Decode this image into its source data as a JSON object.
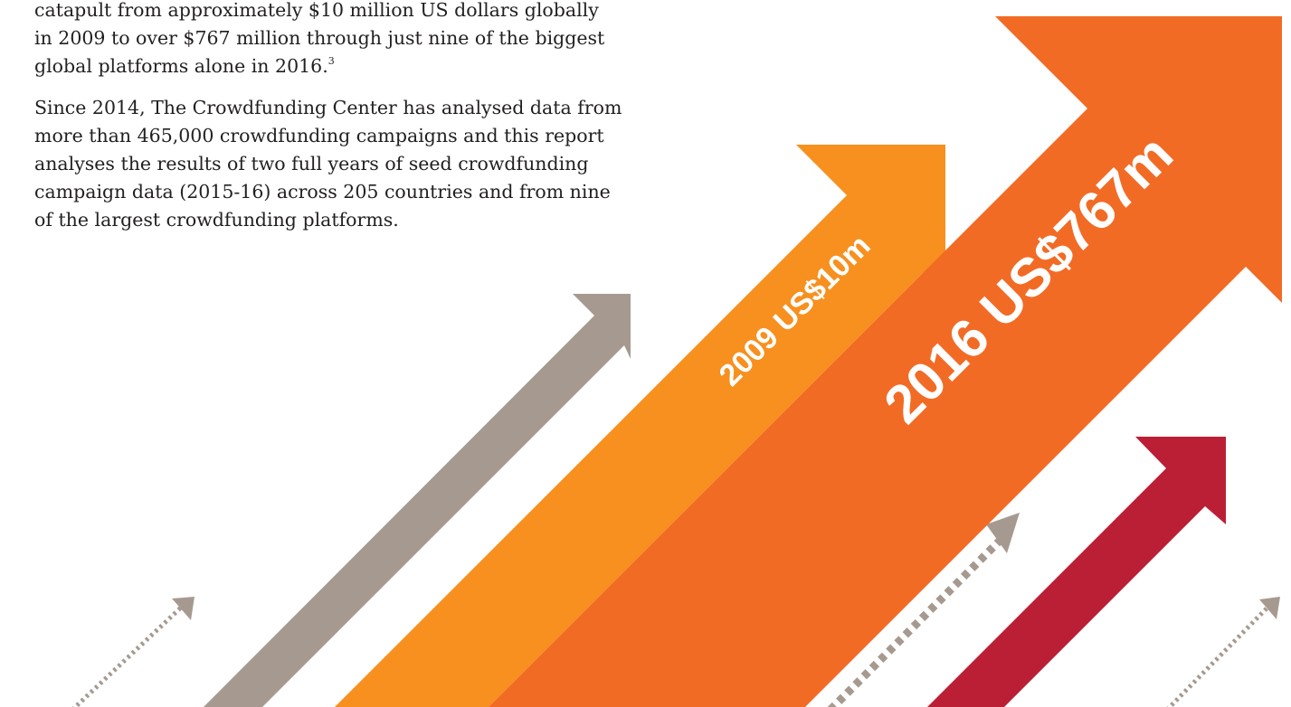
{
  "body": {
    "paragraphs": [
      {
        "lines": [
          "catapult from approximately $10 million US dollars globally",
          "in 2009 to over $767 million through just nine of the biggest",
          "global platforms alone in 2016."
        ],
        "footnote": "3"
      },
      {
        "lines": [
          "Since 2014, The Crowdfunding Center has analysed data from",
          "more than 465,000 crowdfunding campaigns and this report",
          "analyses the results of two full years of seed crowdfunding",
          "campaign data (2015-16) across 205 countries and from nine",
          "of the largest crowdfunding platforms."
        ]
      }
    ]
  },
  "graphic": {
    "labels": [
      "2009 US$10m",
      "2016 US$767m"
    ]
  }
}
